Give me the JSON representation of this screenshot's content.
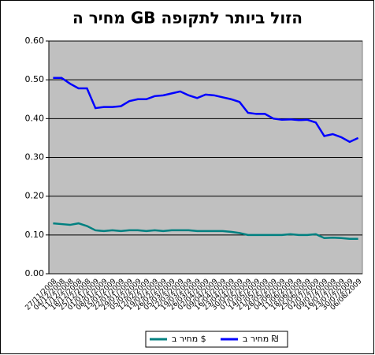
{
  "chart_data": {
    "type": "line",
    "title": "מחיר ה GB הזול ביותר לתקופה",
    "categories": [
      "27/11/2008",
      "04/12/2008",
      "11/12/2008",
      "18/12/2008",
      "25/12/2008",
      "01/01/2009",
      "08/01/2009",
      "15/01/2009",
      "22/01/2009",
      "29/01/2009",
      "05/02/2009",
      "12/02/2009",
      "19/02/2009",
      "26/02/2009",
      "05/03/2009",
      "12/03/2009",
      "19/03/2009",
      "26/03/2009",
      "02/04/2009",
      "09/04/2009",
      "16/04/2009",
      "23/04/2009",
      "30/04/2009",
      "07/05/2009",
      "14/05/2009",
      "21/05/2009",
      "28/05/2009",
      "04/06/2009",
      "11/06/2009",
      "18/06/2009",
      "25/06/2009",
      "02/07/2009",
      "09/07/2009",
      "16/07/2009",
      "23/07/2009",
      "30/07/2009",
      "06/08/2009"
    ],
    "series": [
      {
        "name": "מחיר ב $",
        "color": "#008080",
        "values": [
          0.13,
          0.128,
          0.126,
          0.13,
          0.123,
          0.112,
          0.11,
          0.112,
          0.11,
          0.112,
          0.112,
          0.11,
          0.112,
          0.11,
          0.112,
          0.112,
          0.112,
          0.11,
          0.11,
          0.11,
          0.11,
          0.108,
          0.105,
          0.1,
          0.1,
          0.1,
          0.1,
          0.1,
          0.102,
          0.1,
          0.1,
          0.102,
          0.092,
          0.093,
          0.092,
          0.09,
          0.09
        ]
      },
      {
        "name": "מחיר ב ₪",
        "color": "#0000ff",
        "values": [
          0.505,
          0.505,
          0.49,
          0.478,
          0.478,
          0.427,
          0.43,
          0.43,
          0.432,
          0.445,
          0.45,
          0.45,
          0.458,
          0.46,
          0.465,
          0.47,
          0.46,
          0.453,
          0.462,
          0.46,
          0.455,
          0.45,
          0.443,
          0.415,
          0.412,
          0.412,
          0.4,
          0.397,
          0.398,
          0.396,
          0.397,
          0.39,
          0.355,
          0.36,
          0.352,
          0.34,
          0.35
        ]
      }
    ],
    "ylim": [
      0,
      0.6
    ],
    "yticks": [
      {
        "value": 0,
        "label": "0.00"
      },
      {
        "value": 0.1,
        "label": "0.10"
      },
      {
        "value": 0.2,
        "label": "0.20"
      },
      {
        "value": 0.3,
        "label": "0.30"
      },
      {
        "value": 0.4,
        "label": "0.40"
      },
      {
        "value": 0.5,
        "label": "0.50"
      },
      {
        "value": 0.6,
        "label": "0.60"
      }
    ],
    "grid": true,
    "plot_background": "#c0c0c0"
  }
}
